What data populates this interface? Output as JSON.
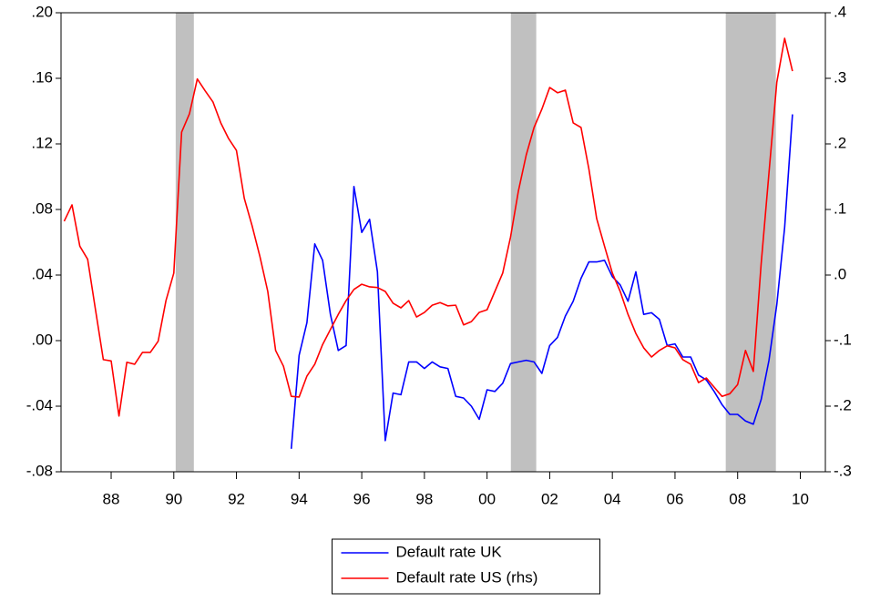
{
  "chart_data": {
    "type": "line",
    "x": [
      1986.5,
      1986.75,
      1987,
      1987.25,
      1987.5,
      1987.75,
      1988,
      1988.25,
      1988.5,
      1988.75,
      1989,
      1989.25,
      1989.5,
      1989.75,
      1990,
      1990.25,
      1990.5,
      1990.75,
      1991,
      1991.25,
      1991.5,
      1991.75,
      1992,
      1992.25,
      1992.5,
      1992.75,
      1993,
      1993.25,
      1993.5,
      1993.75,
      1994,
      1994.25,
      1994.5,
      1994.75,
      1995,
      1995.25,
      1995.5,
      1995.75,
      1996,
      1996.25,
      1996.5,
      1996.75,
      1997,
      1997.25,
      1997.5,
      1997.75,
      1998,
      1998.25,
      1998.5,
      1998.75,
      1999,
      1999.25,
      1999.5,
      1999.75,
      2000,
      2000.25,
      2000.5,
      2000.75,
      2001,
      2001.25,
      2001.5,
      2001.75,
      2002,
      2002.25,
      2002.5,
      2002.75,
      2003,
      2003.25,
      2003.5,
      2003.75,
      2004,
      2004.25,
      2004.5,
      2004.75,
      2005,
      2005.25,
      2005.5,
      2005.75,
      2006,
      2006.25,
      2006.5,
      2006.75,
      2007,
      2007.25,
      2007.5,
      2007.75,
      2008,
      2008.25,
      2008.5,
      2008.75,
      2009,
      2009.25,
      2009.5,
      2009.75
    ],
    "series": [
      {
        "name": "Default rate UK",
        "color": "#0000ff",
        "axis": "y",
        "values": [
          null,
          null,
          null,
          null,
          null,
          null,
          null,
          null,
          null,
          null,
          null,
          null,
          null,
          null,
          null,
          null,
          null,
          null,
          null,
          null,
          null,
          null,
          null,
          null,
          null,
          null,
          null,
          null,
          null,
          -0.066,
          -0.009,
          0.011,
          0.059,
          0.049,
          0.016,
          -0.006,
          -0.003,
          0.094,
          0.066,
          0.074,
          0.042,
          -0.061,
          -0.032,
          -0.033,
          -0.013,
          -0.013,
          -0.017,
          -0.013,
          -0.016,
          -0.017,
          -0.034,
          -0.035,
          -0.04,
          -0.048,
          -0.03,
          -0.031,
          -0.026,
          -0.014,
          -0.013,
          -0.012,
          -0.013,
          -0.02,
          -0.003,
          0.002,
          0.015,
          0.024,
          0.038,
          0.048,
          0.048,
          0.049,
          0.039,
          0.034,
          0.024,
          0.042,
          0.016,
          0.017,
          0.013,
          -0.003,
          -0.002,
          -0.01,
          -0.01,
          -0.021,
          -0.024,
          -0.031,
          -0.039,
          -0.045,
          -0.045,
          -0.049,
          -0.051,
          -0.036,
          -0.012,
          0.022,
          0.069,
          0.138
        ]
      },
      {
        "name": "Default rate US (rhs)",
        "color": "#ff0000",
        "axis": "y2",
        "values": [
          0.082,
          0.107,
          0.044,
          0.024,
          -0.053,
          -0.129,
          -0.131,
          -0.215,
          -0.133,
          -0.136,
          -0.118,
          -0.118,
          -0.101,
          -0.039,
          0.003,
          0.218,
          0.246,
          0.299,
          0.281,
          0.264,
          0.232,
          0.208,
          0.19,
          0.117,
          0.075,
          0.028,
          -0.025,
          -0.115,
          -0.139,
          -0.185,
          -0.186,
          -0.154,
          -0.136,
          -0.106,
          -0.083,
          -0.06,
          -0.039,
          -0.022,
          -0.014,
          -0.018,
          -0.019,
          -0.025,
          -0.043,
          -0.05,
          -0.039,
          -0.064,
          -0.057,
          -0.046,
          -0.042,
          -0.047,
          -0.046,
          -0.076,
          -0.071,
          -0.057,
          -0.053,
          -0.025,
          0.003,
          0.058,
          0.128,
          0.183,
          0.225,
          0.253,
          0.286,
          0.278,
          0.282,
          0.232,
          0.225,
          0.162,
          0.086,
          0.044,
          0.003,
          -0.025,
          -0.06,
          -0.089,
          -0.111,
          -0.125,
          -0.115,
          -0.108,
          -0.111,
          -0.129,
          -0.136,
          -0.164,
          -0.157,
          -0.171,
          -0.185,
          -0.181,
          -0.167,
          -0.115,
          -0.147,
          0.017,
          0.156,
          0.294,
          0.361,
          0.311
        ]
      }
    ],
    "recessions": [
      [
        1990.06,
        1990.64
      ],
      [
        2000.76,
        2001.57
      ],
      [
        2007.62,
        2009.22
      ]
    ],
    "recession_color": "#c0c0c0",
    "xlim": [
      1986.4,
      2010.8
    ],
    "xticks": [
      {
        "value": 1988,
        "label": "88"
      },
      {
        "value": 1990,
        "label": "90"
      },
      {
        "value": 1992,
        "label": "92"
      },
      {
        "value": 1994,
        "label": "94"
      },
      {
        "value": 1996,
        "label": "96"
      },
      {
        "value": 1998,
        "label": "98"
      },
      {
        "value": 2000,
        "label": "00"
      },
      {
        "value": 2002,
        "label": "02"
      },
      {
        "value": 2004,
        "label": "04"
      },
      {
        "value": 2006,
        "label": "06"
      },
      {
        "value": 2008,
        "label": "08"
      },
      {
        "value": 2010,
        "label": "10"
      }
    ],
    "ylim": [
      -0.08,
      0.2
    ],
    "yticks": [
      {
        "value": -0.08,
        "label": "-.08"
      },
      {
        "value": -0.04,
        "label": "-.04"
      },
      {
        "value": 0,
        "label": ".00"
      },
      {
        "value": 0.04,
        "label": ".04"
      },
      {
        "value": 0.08,
        "label": ".08"
      },
      {
        "value": 0.12,
        "label": ".12"
      },
      {
        "value": 0.16,
        "label": ".16"
      },
      {
        "value": 0.2,
        "label": ".20"
      }
    ],
    "y2lim": [
      -0.3,
      0.4
    ],
    "y2ticks": [
      {
        "value": -0.3,
        "label": "-.3"
      },
      {
        "value": -0.2,
        "label": "-.2"
      },
      {
        "value": -0.1,
        "label": "-.1"
      },
      {
        "value": 0,
        "label": ".0"
      },
      {
        "value": 0.1,
        "label": ".1"
      },
      {
        "value": 0.2,
        "label": ".2"
      },
      {
        "value": 0.3,
        "label": ".3"
      },
      {
        "value": 0.4,
        "label": ".4"
      }
    ],
    "legend": "bottom-center"
  }
}
